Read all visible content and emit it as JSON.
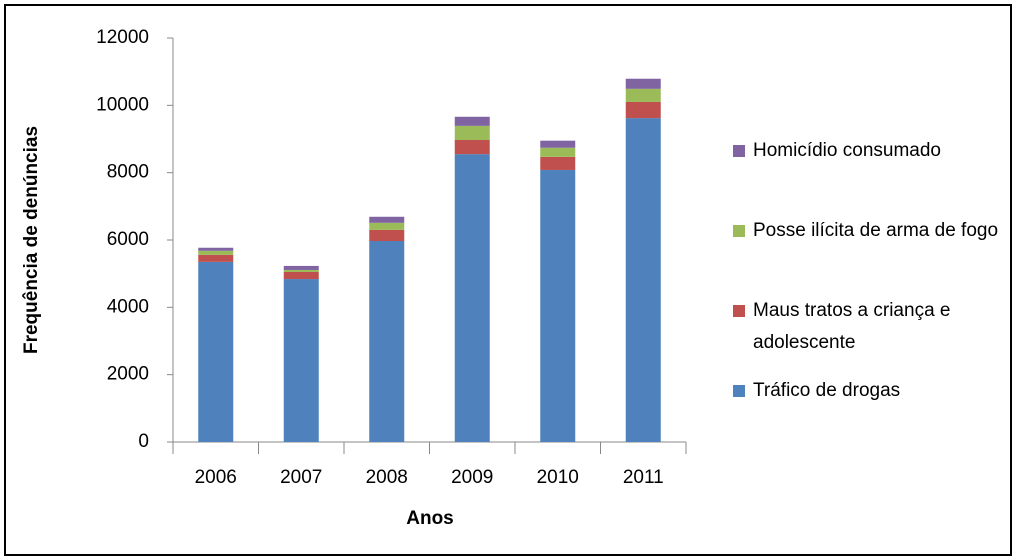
{
  "chart_data": {
    "type": "stacked_bar",
    "categories": [
      "2006",
      "2007",
      "2008",
      "2009",
      "2010",
      "2011"
    ],
    "series": [
      {
        "name": "Tráfico de drogas",
        "color": "#4f81bd",
        "values": [
          5350,
          4840,
          5970,
          8550,
          8080,
          9620
        ]
      },
      {
        "name": "Maus tratos a criança e adolescente",
        "color": "#c0504d",
        "values": [
          210,
          210,
          330,
          420,
          390,
          480
        ]
      },
      {
        "name": "Posse ilícita de arma de fogo",
        "color": "#9bbb59",
        "values": [
          120,
          60,
          210,
          420,
          270,
          390
        ]
      },
      {
        "name": "Homicídio consumado",
        "color": "#8064a2",
        "values": [
          90,
          120,
          180,
          270,
          210,
          300
        ]
      }
    ],
    "ylim": [
      0,
      12000
    ],
    "yticks": [
      0,
      2000,
      4000,
      6000,
      8000,
      10000,
      12000
    ],
    "x_label": "Anos",
    "y_label": "Frequência de denúncias",
    "grid": false,
    "legend": "right"
  }
}
